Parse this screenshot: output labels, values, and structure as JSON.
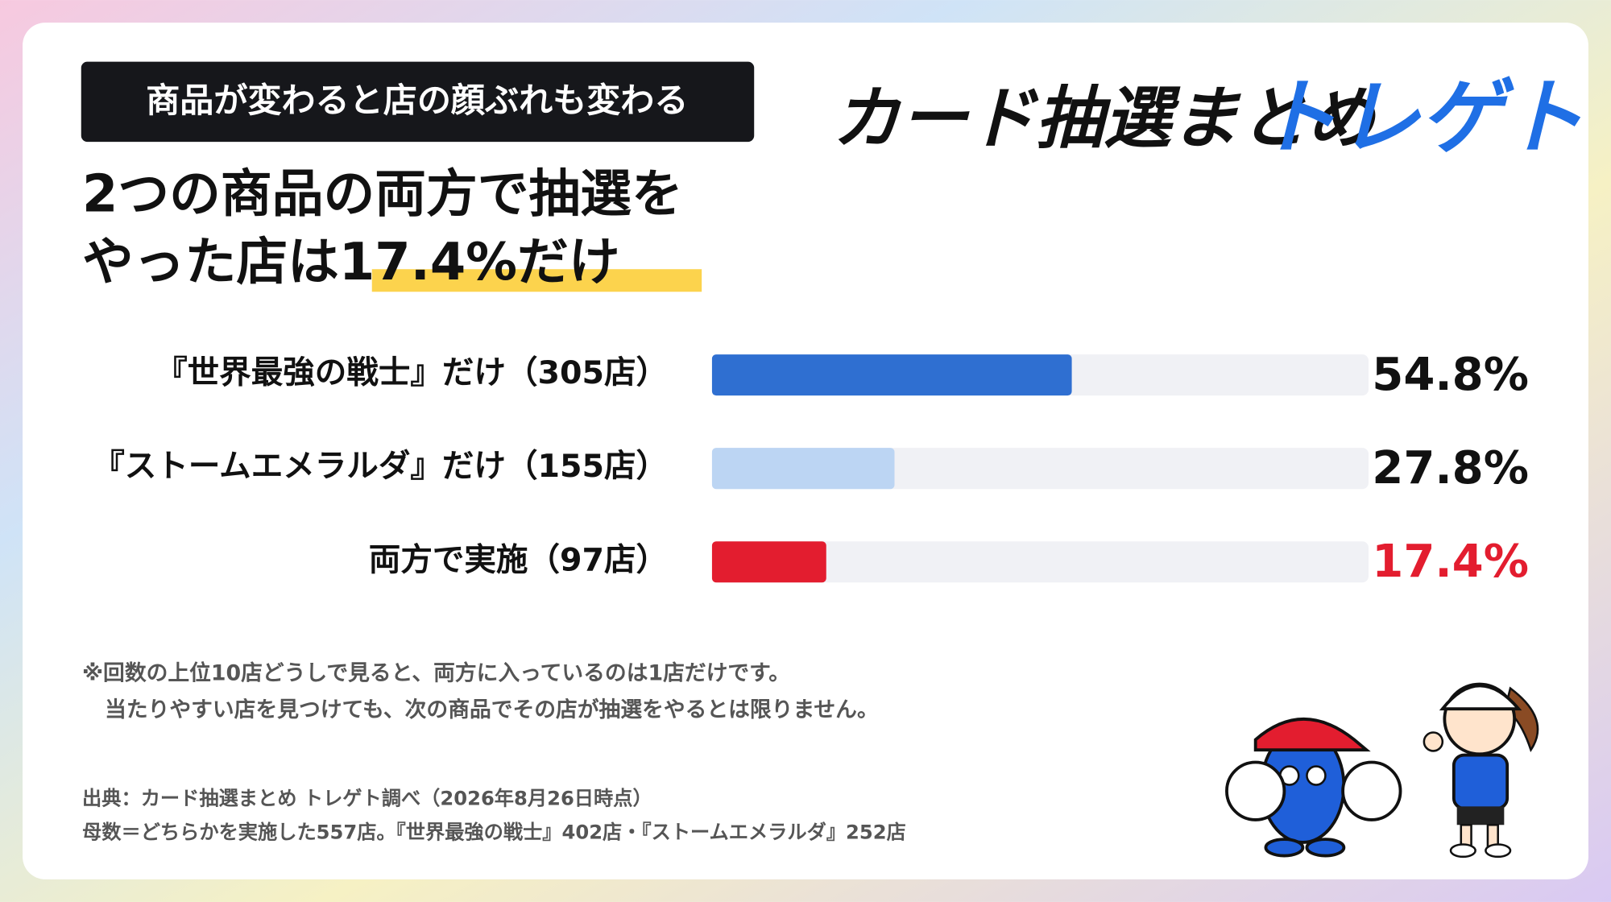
{
  "tag": "商品が変わると店の顔ぶれも変わる",
  "logo": {
    "main": "カード抽選まとめ",
    "brand": "トレゲト"
  },
  "chart_data": {
    "type": "hbar",
    "title_lines": [
      "2つの商品の両方で抽選を",
      "やった店は"
    ],
    "title_highlight": "17.4%だけ",
    "categories": [
      "『世界最強の戦士』だけ（305店）",
      "『ストームエメラルダ』だけ（155店）",
      "両方で実施（97店）"
    ],
    "values": [
      54.8,
      27.8,
      17.4
    ],
    "value_labels": [
      "54.8%",
      "27.8%",
      "17.4%"
    ],
    "colors": [
      "#2f6fd1",
      "#bcd5f3",
      "#e31d2f"
    ],
    "value_label_colors": [
      "#111111",
      "#111111",
      "#e31d2f"
    ],
    "track_color": "#f0f1f5",
    "xlim": [
      0,
      100
    ]
  },
  "notes": [
    "※回数の上位10店どうしで見ると、両方に入っているのは1店だけです。",
    "当たりやすい店を見つけても、次の商品でその店が抽選をやるとは限りません。"
  ],
  "source": [
    "出典：カード抽選まとめ トレゲト調べ（2026年8月26日時点）",
    "母数＝どちらかを実施した557店。『世界最強の戦士』402店・『ストームエメラルダ』252店"
  ]
}
